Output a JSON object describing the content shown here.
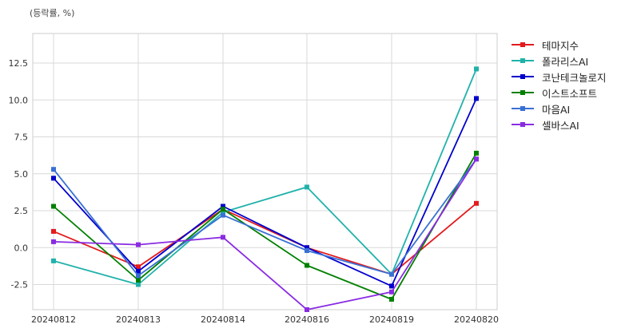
{
  "chart_data": {
    "type": "line",
    "unit_label": "(등락률, %)",
    "categories": [
      "20240812",
      "20240813",
      "20240814",
      "20240816",
      "20240819",
      "20240820"
    ],
    "ylim": [
      -4.2,
      14.5
    ],
    "yticks": [
      -2.5,
      0.0,
      2.5,
      5.0,
      7.5,
      10.0,
      12.5
    ],
    "ytick_labels": [
      "-2.5",
      "0.0",
      "2.5",
      "5.0",
      "7.5",
      "10.0",
      "12.5"
    ],
    "grid": true,
    "legend_position": "outside-right",
    "series": [
      {
        "name": "테마지수",
        "color": "#e31a1c",
        "values": [
          1.1,
          -1.3,
          2.6,
          0.0,
          -1.8,
          3.0
        ]
      },
      {
        "name": "폴라리스AI",
        "color": "#20b2aa",
        "values": [
          -0.9,
          -2.5,
          2.4,
          4.1,
          -1.8,
          12.1
        ]
      },
      {
        "name": "코난테크놀로지",
        "color": "#0000cd",
        "values": [
          4.7,
          -1.6,
          2.8,
          0.0,
          -2.6,
          10.1
        ]
      },
      {
        "name": "이스트소프트",
        "color": "#008000",
        "values": [
          2.8,
          -2.2,
          2.6,
          -1.2,
          -3.5,
          6.4
        ]
      },
      {
        "name": "마음AI",
        "color": "#3a70d4",
        "values": [
          5.3,
          -1.9,
          2.2,
          -0.2,
          -1.8,
          6.0
        ]
      },
      {
        "name": "셀바스AI",
        "color": "#8a2be2",
        "values": [
          0.4,
          0.2,
          0.7,
          -4.2,
          -3.0,
          6.0
        ]
      }
    ]
  }
}
